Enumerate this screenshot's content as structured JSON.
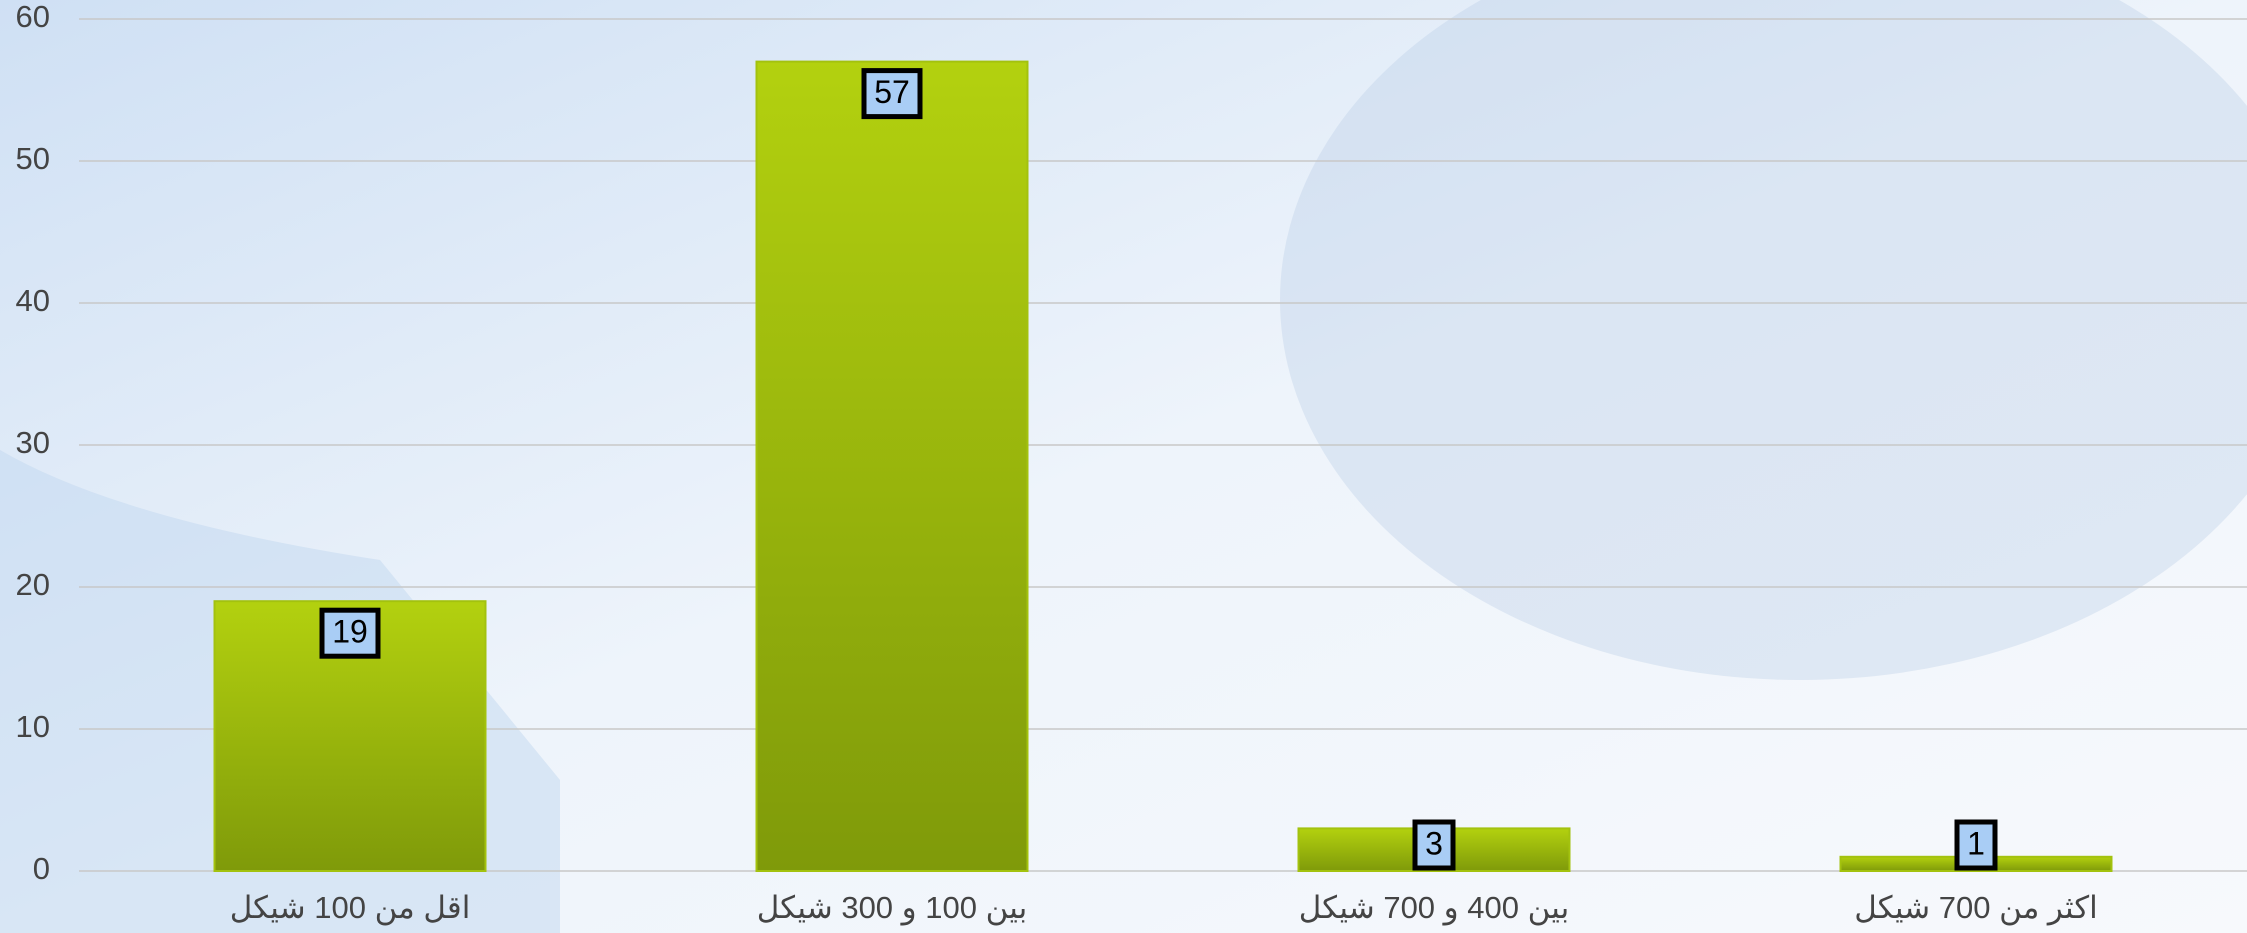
{
  "chart_data": {
    "type": "bar",
    "categories": [
      "اقل من 100 شيكل",
      "بين 100 و 300 شيكل",
      "بين 400 و 700 شيكل",
      "اكثر من 700 شيكل"
    ],
    "values": [
      19,
      57,
      3,
      1
    ],
    "color": "#a3c20e",
    "ylim": [
      0,
      60
    ],
    "yticks": [
      0,
      10,
      20,
      30,
      40,
      50,
      60
    ],
    "grid": true,
    "data_labels": true
  }
}
